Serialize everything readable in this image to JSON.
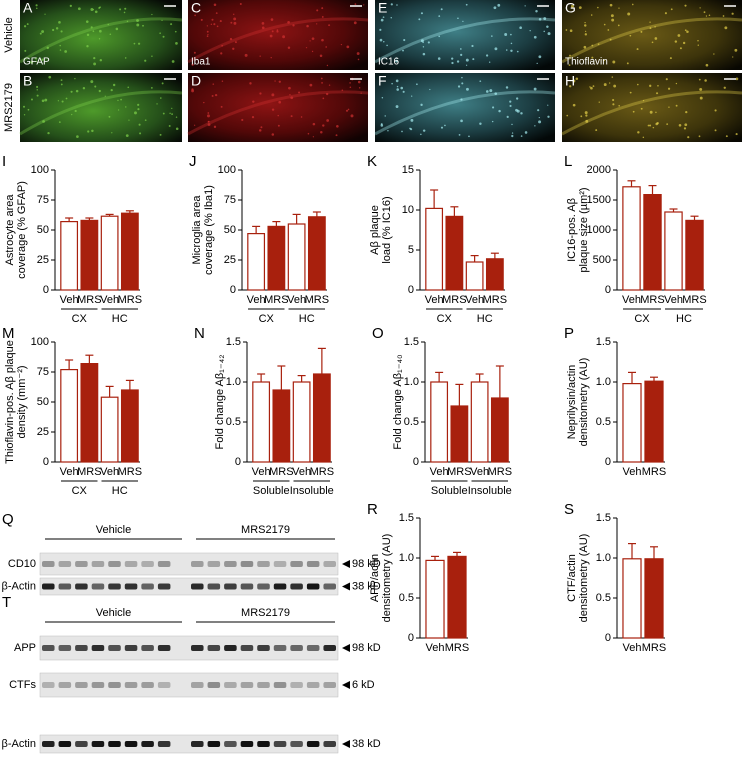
{
  "images": {
    "row_labels": [
      "Vehicle",
      "MRS2179"
    ],
    "panels": [
      {
        "letter": "A",
        "stain": "GFAP"
      },
      {
        "letter": "B"
      },
      {
        "letter": "C",
        "stain": "Iba1"
      },
      {
        "letter": "D"
      },
      {
        "letter": "E",
        "stain": "IC16"
      },
      {
        "letter": "F"
      },
      {
        "letter": "G",
        "stain": "Thioflavin"
      },
      {
        "letter": "H"
      }
    ]
  },
  "chart_data": [
    {
      "type": "bar",
      "panel": "I",
      "ylabel": [
        "Astrocyte area",
        "coverage (% GFAP)"
      ],
      "categories": [
        "Veh",
        "MRS",
        "Veh",
        "MRS"
      ],
      "groups": [
        "CX",
        "HC"
      ],
      "values": [
        57,
        58,
        61.5,
        64
      ],
      "errors": [
        3,
        2,
        1.5,
        2
      ],
      "ylim": [
        0,
        100
      ],
      "yticks": [
        0,
        25,
        50,
        75,
        100
      ],
      "bar_fills": [
        "#ffffff",
        "#a8200d",
        "#ffffff",
        "#a8200d"
      ],
      "edge_color": "#a8200d"
    },
    {
      "type": "bar",
      "panel": "J",
      "ylabel": [
        "Microglia area",
        "coverage (% Iba1)"
      ],
      "categories": [
        "Veh",
        "MRS",
        "Veh",
        "MRS"
      ],
      "groups": [
        "CX",
        "HC"
      ],
      "values": [
        47,
        53,
        55,
        61
      ],
      "errors": [
        6,
        4,
        8,
        4
      ],
      "ylim": [
        0,
        100
      ],
      "yticks": [
        0,
        25,
        50,
        75,
        100
      ],
      "bar_fills": [
        "#ffffff",
        "#a8200d",
        "#ffffff",
        "#a8200d"
      ],
      "edge_color": "#a8200d"
    },
    {
      "type": "bar",
      "panel": "K",
      "ylabel": [
        "Aβ plaque",
        "load (% IC16)"
      ],
      "categories": [
        "Veh",
        "MRS",
        "Veh",
        "MRS"
      ],
      "groups": [
        "CX",
        "HC"
      ],
      "values": [
        10.2,
        9.2,
        3.5,
        3.9
      ],
      "errors": [
        2.3,
        1.2,
        0.8,
        0.7
      ],
      "ylim": [
        0,
        15
      ],
      "yticks": [
        0,
        5,
        10,
        15
      ],
      "bar_fills": [
        "#ffffff",
        "#a8200d",
        "#ffffff",
        "#a8200d"
      ],
      "edge_color": "#a8200d"
    },
    {
      "type": "bar",
      "panel": "L",
      "ylabel": [
        "IC16-pos. Aβ",
        "plaque size (µm²)"
      ],
      "categories": [
        "Veh",
        "MRS",
        "Veh",
        "MRS"
      ],
      "groups": [
        "CX",
        "HC"
      ],
      "values": [
        1720,
        1590,
        1300,
        1160
      ],
      "errors": [
        100,
        150,
        50,
        70
      ],
      "ylim": [
        0,
        2000
      ],
      "yticks": [
        0,
        500,
        1000,
        1500,
        2000
      ],
      "bar_fills": [
        "#ffffff",
        "#a8200d",
        "#ffffff",
        "#a8200d"
      ],
      "edge_color": "#a8200d"
    },
    {
      "type": "bar",
      "panel": "M",
      "ylabel": [
        "Thioflavin-pos. Aβ plaque",
        "density (mm⁻²)"
      ],
      "categories": [
        "Veh",
        "MRS",
        "Veh",
        "MRS"
      ],
      "groups": [
        "CX",
        "HC"
      ],
      "values": [
        77,
        82,
        54,
        60
      ],
      "errors": [
        8,
        7,
        9,
        8
      ],
      "ylim": [
        0,
        100
      ],
      "yticks": [
        0,
        25,
        50,
        75,
        100
      ],
      "bar_fills": [
        "#ffffff",
        "#a8200d",
        "#ffffff",
        "#a8200d"
      ],
      "edge_color": "#a8200d"
    },
    {
      "type": "bar",
      "panel": "N",
      "ylabel": [
        "Fold change Aβ₁₋₄₂"
      ],
      "categories": [
        "Veh",
        "MRS",
        "Veh",
        "MRS"
      ],
      "groups": [
        "Soluble",
        "Insoluble"
      ],
      "values": [
        1.0,
        0.9,
        1.0,
        1.1
      ],
      "errors": [
        0.1,
        0.3,
        0.08,
        0.32
      ],
      "ylim": [
        0,
        1.5
      ],
      "yticks": [
        0,
        0.5,
        {
          "value": 1,
          "label": "1.0"
        },
        1.5
      ],
      "bar_fills": [
        "#ffffff",
        "#a8200d",
        "#ffffff",
        "#a8200d"
      ],
      "edge_color": "#a8200d"
    },
    {
      "type": "bar",
      "panel": "O",
      "ylabel": [
        "Fold change Aβ₁₋₄₀"
      ],
      "categories": [
        "Veh",
        "MRS",
        "Veh",
        "MRS"
      ],
      "groups": [
        "Soluble",
        "Insoluble"
      ],
      "values": [
        1.0,
        0.7,
        1.0,
        0.8
      ],
      "errors": [
        0.12,
        0.27,
        0.1,
        0.4
      ],
      "ylim": [
        0,
        1.5
      ],
      "yticks": [
        0,
        0.5,
        {
          "value": 1,
          "label": "1.0"
        },
        1.5
      ],
      "bar_fills": [
        "#ffffff",
        "#a8200d",
        "#ffffff",
        "#a8200d"
      ],
      "edge_color": "#a8200d"
    },
    {
      "type": "bar",
      "panel": "P",
      "ylabel": [
        "Neprilysin/actin",
        "densitometry (AU)"
      ],
      "categories": [
        "Veh",
        "MRS"
      ],
      "values": [
        0.98,
        1.01
      ],
      "errors": [
        0.14,
        0.05
      ],
      "ylim": [
        0,
        1.5
      ],
      "yticks": [
        0,
        0.5,
        {
          "value": 1,
          "label": "1.0"
        },
        1.5
      ],
      "bar_fills": [
        "#ffffff",
        "#a8200d"
      ],
      "edge_color": "#a8200d"
    },
    {
      "type": "bar",
      "panel": "R",
      "ylabel": [
        "APP/actin",
        "densitometry (AU)"
      ],
      "categories": [
        "Veh",
        "MRS"
      ],
      "values": [
        0.97,
        1.02
      ],
      "errors": [
        0.05,
        0.05
      ],
      "ylim": [
        0,
        1.5
      ],
      "yticks": [
        0,
        0.5,
        {
          "value": 1,
          "label": "1.0"
        },
        1.5
      ],
      "bar_fills": [
        "#ffffff",
        "#a8200d"
      ],
      "edge_color": "#a8200d"
    },
    {
      "type": "bar",
      "panel": "S",
      "ylabel": [
        "CTF/actin",
        "densitometry (AU)"
      ],
      "categories": [
        "Veh",
        "MRS"
      ],
      "values": [
        0.99,
        0.99
      ],
      "errors": [
        0.19,
        0.15
      ],
      "ylim": [
        0,
        1.5
      ],
      "yticks": [
        0,
        0.5,
        {
          "value": 1,
          "label": "1.0"
        },
        1.5
      ],
      "bar_fills": [
        "#ffffff",
        "#a8200d"
      ],
      "edge_color": "#a8200d"
    }
  ],
  "blots": [
    {
      "letter": "Q",
      "groups": [
        "Vehicle",
        "MRS2179"
      ],
      "rows": [
        {
          "label": "CD10",
          "size": "98 kD"
        },
        {
          "label": "β-Actin",
          "size": "38 kD"
        }
      ]
    },
    {
      "letter": "T",
      "groups": [
        "Vehicle",
        "MRS2179"
      ],
      "rows": [
        {
          "label": "APP",
          "size": "98 kD"
        },
        {
          "label": "CTFs",
          "size": "6 kD"
        },
        {
          "label": "β-Actin",
          "size": "38 kD"
        }
      ]
    }
  ]
}
